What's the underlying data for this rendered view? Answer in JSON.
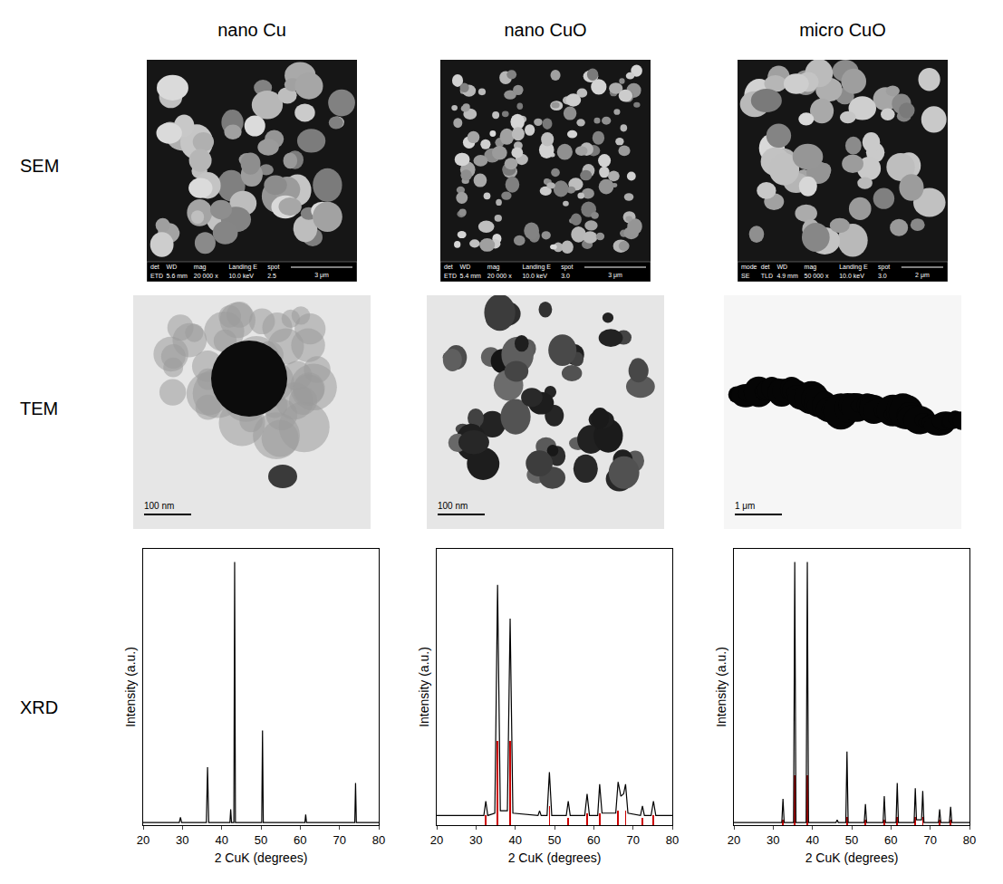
{
  "columns": [
    "nano Cu",
    "nano CuO",
    "micro CuO"
  ],
  "rows": [
    "SEM",
    "TEM",
    "XRD"
  ],
  "sem": [
    {
      "info_header": [
        "det",
        "WD",
        "mag",
        "Landing E",
        "spot"
      ],
      "info_values": [
        "ETD",
        "5.6 mm",
        "20 000 x",
        "10.0 keV",
        "2.5"
      ],
      "scale_bar": "3 μm"
    },
    {
      "info_header": [
        "det",
        "WD",
        "mag",
        "Landing E",
        "spot"
      ],
      "info_values": [
        "ETD",
        "5.4 mm",
        "20 000 x",
        "10.0 keV",
        "3.0"
      ],
      "scale_bar": "3 μm"
    },
    {
      "info_header": [
        "mode",
        "det",
        "WD",
        "mag",
        "Landing E",
        "spot"
      ],
      "info_values": [
        "SE",
        "TLD",
        "4.9 mm",
        "50 000 x",
        "10.0 keV",
        "3.0"
      ],
      "scale_bar": "2 μm"
    }
  ],
  "tem": [
    {
      "scale_bar": "100 nm"
    },
    {
      "scale_bar": "100 nm"
    },
    {
      "scale_bar": "1 μm"
    }
  ],
  "chart_data": [
    {
      "type": "line",
      "xlabel": "2 CuK (degrees)",
      "ylabel": "Intensity (a.u.)",
      "xlim": [
        20,
        80
      ],
      "xticks": [
        20,
        30,
        40,
        50,
        60,
        70,
        80
      ],
      "ylim": [
        0,
        105
      ],
      "grid": false,
      "tick_labels": "x",
      "series": [
        {
          "type": "line",
          "color": "#000000",
          "x": [
            20,
            29.2,
            29.5,
            29.8,
            36.1,
            36.4,
            36.7,
            42.1,
            42.3,
            42.5,
            43.1,
            43.3,
            43.5,
            50.2,
            50.4,
            50.6,
            61.2,
            61.4,
            61.6,
            73.9,
            74.1,
            74.3,
            80
          ],
          "values": [
            1,
            1,
            3,
            1,
            1,
            22,
            1,
            1,
            6,
            1,
            1,
            100,
            1,
            1,
            36,
            1,
            1,
            4,
            1,
            1,
            16,
            1,
            1
          ]
        }
      ]
    },
    {
      "type": "line",
      "xlabel": "2 CuK (degrees)",
      "ylabel": "Intensity (a.u.)",
      "xlim": [
        20,
        80
      ],
      "xticks": [
        20,
        30,
        40,
        50,
        60,
        70,
        80
      ],
      "ylim": [
        0,
        115
      ],
      "grid": false,
      "tick_labels": "x",
      "series": [
        {
          "type": "line",
          "color": "#000000",
          "x": [
            20,
            32.0,
            32.5,
            33.0,
            34.8,
            35.5,
            36.2,
            38.0,
            38.7,
            39.4,
            45.8,
            46.2,
            46.6,
            48.1,
            48.7,
            49.3,
            53.0,
            53.5,
            54.0,
            57.7,
            58.3,
            58.9,
            61.0,
            61.5,
            62.1,
            65.6,
            66.2,
            66.9,
            67.6,
            68.1,
            68.7,
            71.9,
            72.4,
            72.9,
            74.6,
            75.2,
            75.8,
            80
          ],
          "values": [
            4,
            4,
            10,
            4,
            5,
            100,
            6,
            6,
            86,
            5,
            4,
            6,
            4,
            4,
            22,
            4,
            4,
            10,
            4,
            4,
            13,
            4,
            4,
            17,
            5,
            5,
            18,
            12,
            13,
            17,
            5,
            4,
            8,
            4,
            4,
            10,
            4,
            4
          ]
        },
        {
          "type": "bar",
          "color": "#cc0000",
          "x": [
            32.5,
            35.5,
            38.7,
            48.7,
            53.5,
            58.3,
            61.5,
            66.2,
            68.1,
            72.4,
            75.2
          ],
          "values": [
            4,
            35,
            35,
            8,
            3,
            5,
            5,
            6,
            6,
            3,
            4
          ]
        }
      ]
    },
    {
      "type": "line",
      "xlabel": "2 CuK (degrees)",
      "ylabel": "Intensity (a.u.)",
      "xlim": [
        20,
        80
      ],
      "xticks": [
        20,
        30,
        40,
        50,
        60,
        70,
        80
      ],
      "ylim": [
        0,
        105
      ],
      "grid": false,
      "tick_labels": "x",
      "series": [
        {
          "type": "line",
          "color": "#000000",
          "x": [
            20,
            32.2,
            32.5,
            32.8,
            35.2,
            35.5,
            35.8,
            38.4,
            38.7,
            39.0,
            46.0,
            46.3,
            46.6,
            48.5,
            48.8,
            49.1,
            53.2,
            53.5,
            53.8,
            58.0,
            58.3,
            58.6,
            61.3,
            61.6,
            61.9,
            65.9,
            66.2,
            66.5,
            67.8,
            68.1,
            68.4,
            72.1,
            72.4,
            72.7,
            74.9,
            75.2,
            75.5,
            80
          ],
          "values": [
            1,
            1,
            10,
            1,
            1,
            100,
            1,
            1,
            100,
            1,
            1,
            2,
            1,
            1,
            28,
            1,
            1,
            8,
            1,
            1,
            11,
            1,
            1,
            16,
            1,
            1,
            14,
            2,
            2,
            13,
            1,
            1,
            6,
            1,
            1,
            7,
            1,
            1
          ]
        },
        {
          "type": "bar",
          "color": "#cc0000",
          "x": [
            32.5,
            35.5,
            38.7,
            48.8,
            53.5,
            58.3,
            61.6,
            66.2,
            68.1,
            72.4,
            75.2
          ],
          "values": [
            2,
            19,
            19,
            3,
            2,
            2,
            3,
            3,
            3,
            2,
            2
          ]
        }
      ]
    }
  ]
}
